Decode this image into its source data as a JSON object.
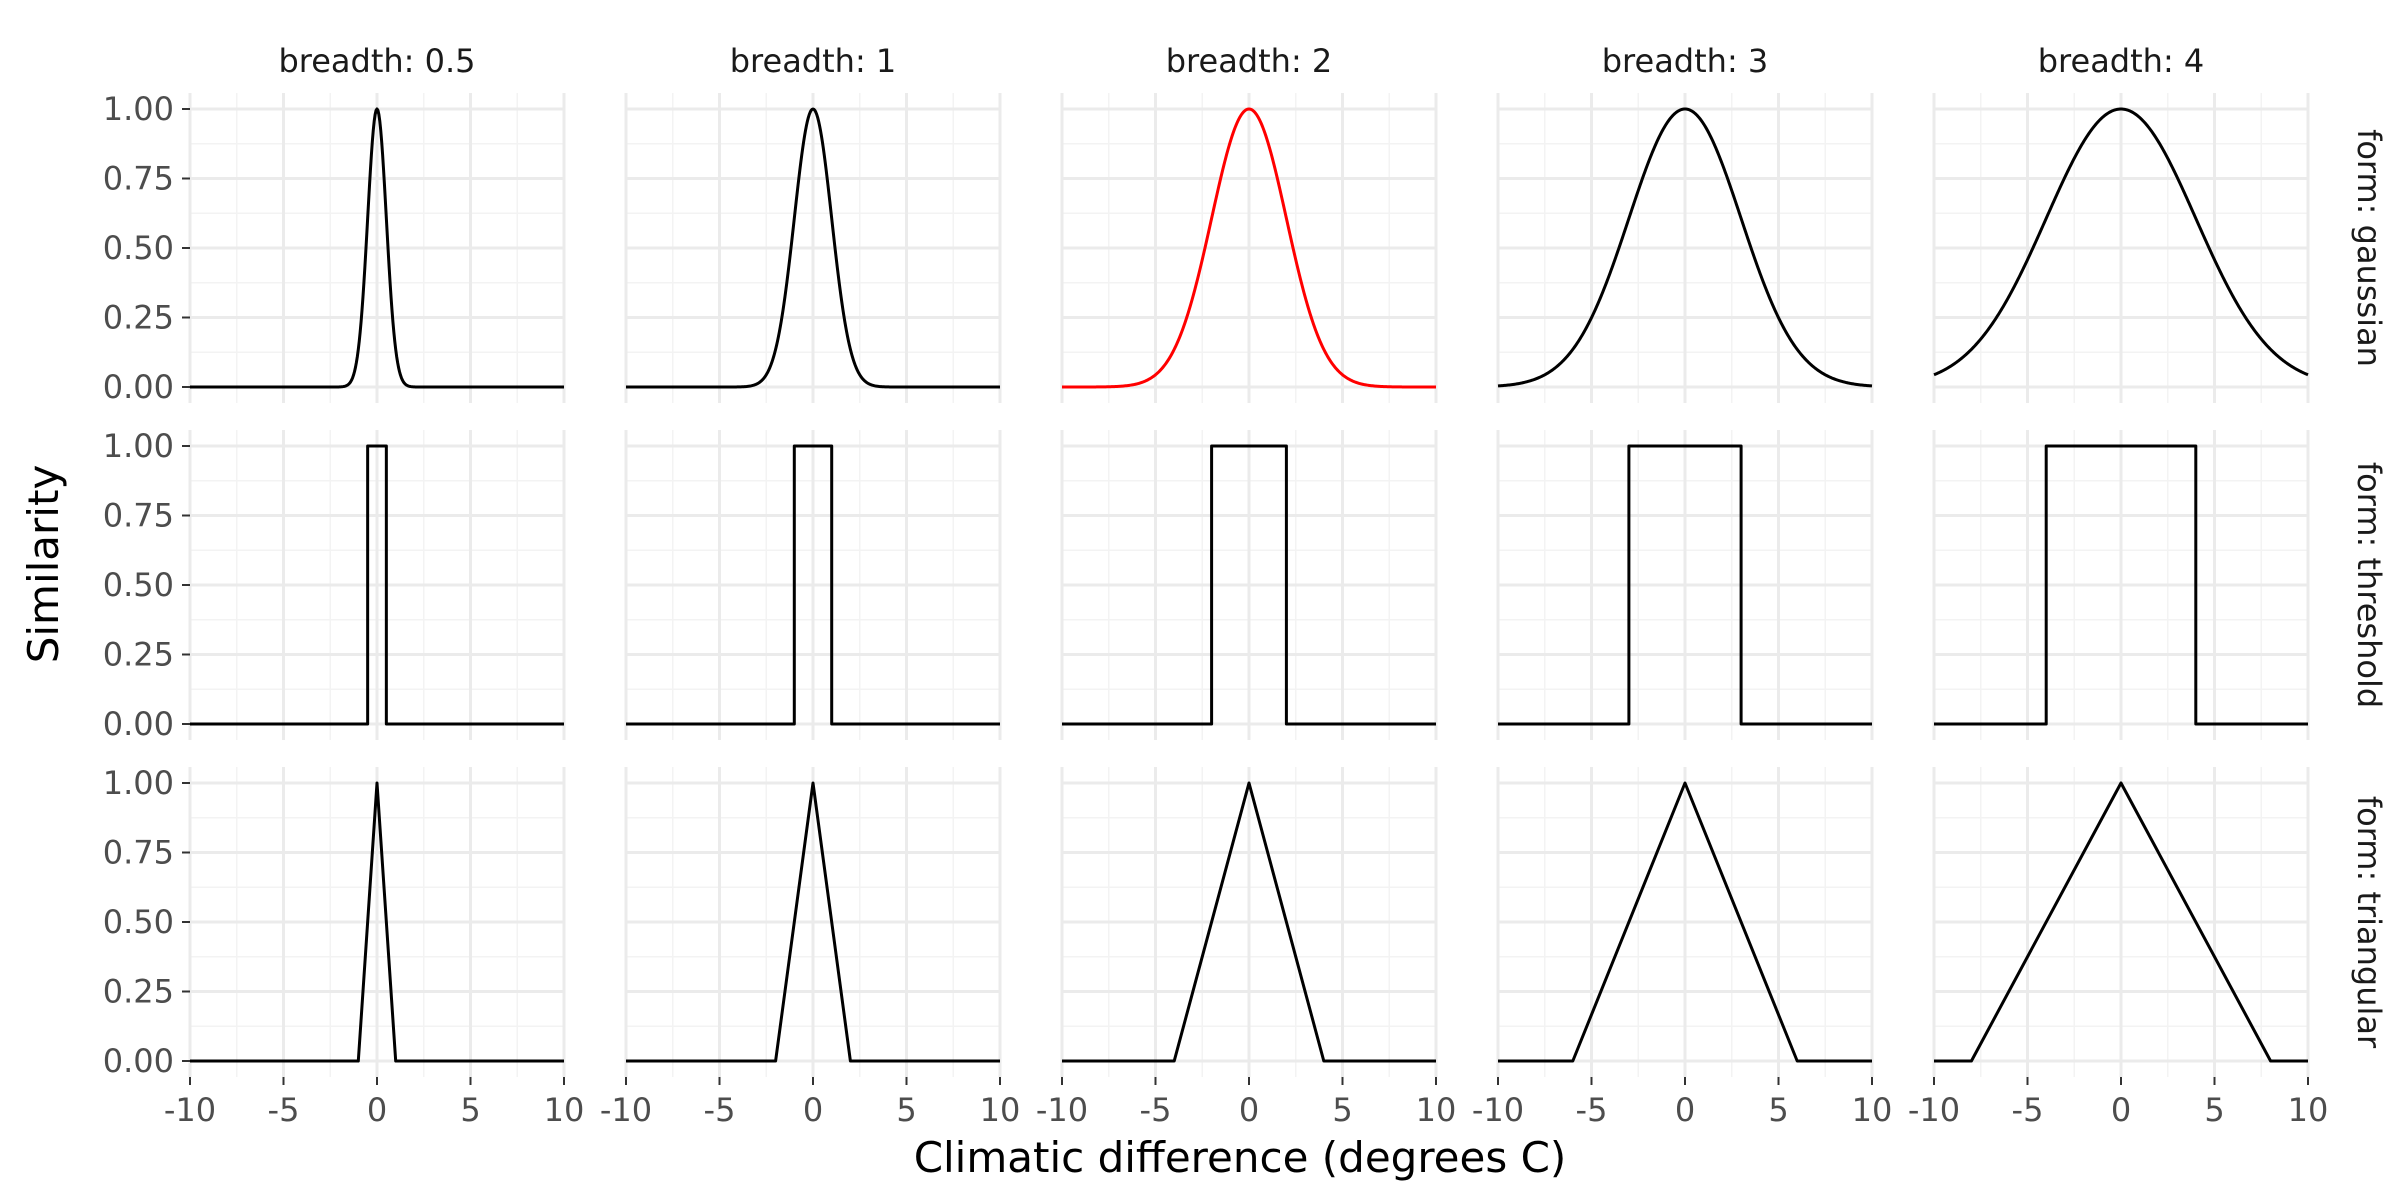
{
  "chart_data": {
    "type": "line",
    "xlabel": "Climatic difference (degrees C)",
    "ylabel": "Similarity",
    "xlim": [
      -10,
      10
    ],
    "ylim": [
      0,
      1
    ],
    "x_ticks": [
      -10,
      -5,
      0,
      5,
      10
    ],
    "x_tick_labels": [
      "-10",
      "-5",
      "0",
      "5",
      "10"
    ],
    "y_ticks": [
      0,
      0.25,
      0.5,
      0.75,
      1
    ],
    "y_tick_labels": [
      "0.00",
      "0.25",
      "0.50",
      "0.75",
      "1.00"
    ],
    "columns": [
      {
        "label": "breadth: 0.5",
        "breadth": 0.5
      },
      {
        "label": "breadth: 1",
        "breadth": 1
      },
      {
        "label": "breadth: 2",
        "breadth": 2
      },
      {
        "label": "breadth: 3",
        "breadth": 3
      },
      {
        "label": "breadth: 4",
        "breadth": 4
      }
    ],
    "rows": [
      {
        "label": "form: gaussian",
        "form": "gaussian"
      },
      {
        "label": "form: threshold",
        "form": "threshold"
      },
      {
        "label": "form: triangular",
        "form": "triangular"
      }
    ],
    "default_color": "#000000",
    "highlight": {
      "form": "gaussian",
      "breadth": 2,
      "color": "#ff0000"
    },
    "grid": true,
    "legend": "none"
  }
}
